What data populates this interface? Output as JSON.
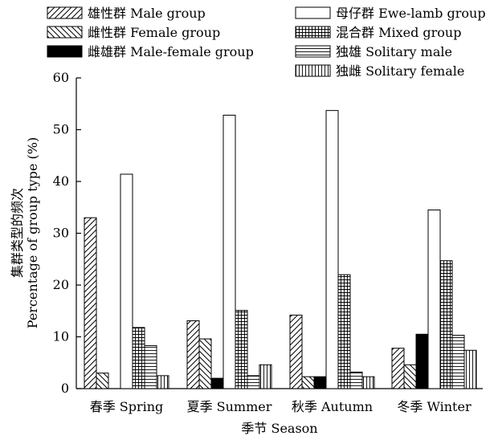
{
  "chart_data": {
    "type": "bar",
    "categories": [
      "春季 Spring",
      "夏季 Summer",
      "秋季 Autumn",
      "冬季 Winter"
    ],
    "series": [
      {
        "name": "雄性群 Male group",
        "pattern": "diag-right",
        "values": [
          33.0,
          13.1,
          14.2,
          7.8
        ]
      },
      {
        "name": "雌性群 Female group",
        "pattern": "diag-left",
        "values": [
          3.0,
          9.6,
          2.3,
          4.6
        ]
      },
      {
        "name": "雌雄群 Male-female group",
        "pattern": "solid",
        "values": [
          0,
          2.0,
          2.3,
          10.5
        ]
      },
      {
        "name": "母仔群 Ewe-lamb group",
        "pattern": "none",
        "values": [
          41.4,
          52.8,
          53.7,
          34.5
        ]
      },
      {
        "name": "混合群 Mixed group",
        "pattern": "grid",
        "values": [
          11.8,
          15.1,
          22.0,
          24.7
        ]
      },
      {
        "name": "独雄 Solitary male",
        "pattern": "horizontal",
        "values": [
          8.3,
          2.5,
          3.2,
          10.3
        ]
      },
      {
        "name": "独雌 Solitary female",
        "pattern": "vertical",
        "values": [
          2.5,
          4.6,
          2.3,
          7.4
        ]
      }
    ],
    "xlabel": "季节 Season",
    "ylabel_line1": "集群类型的频次",
    "ylabel_line2": "Percentage of group type (%)",
    "ylim": [
      0,
      60
    ],
    "yticks": [
      0,
      10,
      20,
      30,
      40,
      50,
      60
    ],
    "legend_position": "top",
    "grid": false
  }
}
